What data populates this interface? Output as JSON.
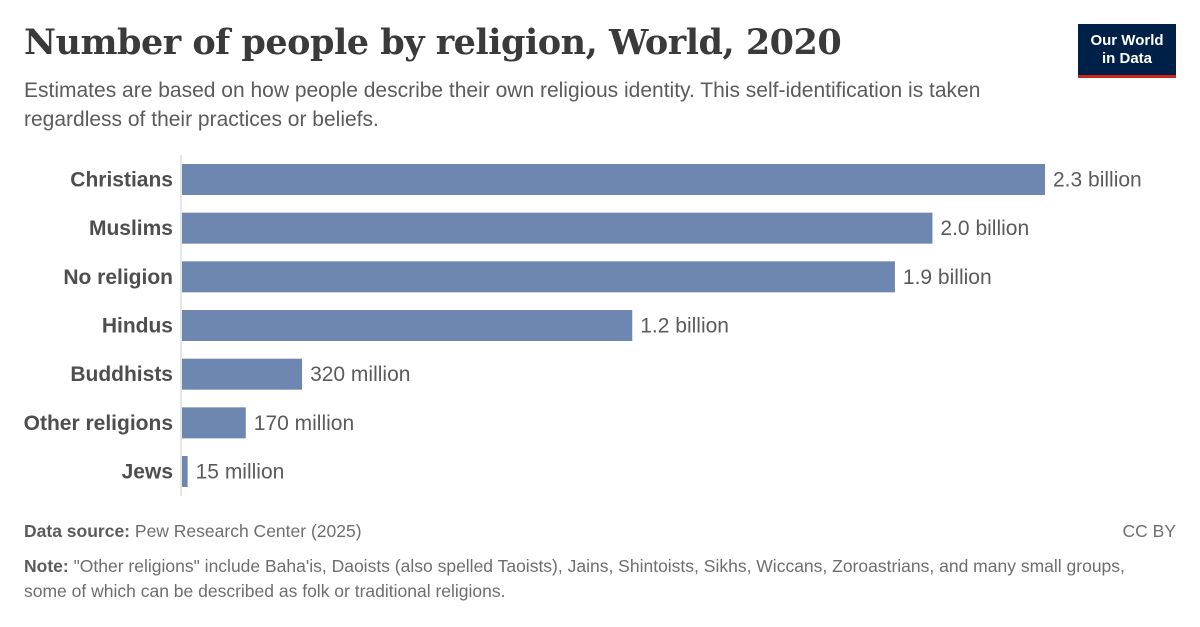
{
  "header": {
    "title": "Number of people by religion, World, 2020",
    "subtitle": "Estimates are based on how people describe their own religious identity. This self-identification is taken regardless of their practices or beliefs."
  },
  "logo": {
    "line1": "Our World",
    "line2": "in Data"
  },
  "footer": {
    "source_label": "Data source:",
    "source_text": "Pew Research Center (2025)",
    "license": "CC BY",
    "note_label": "Note:",
    "note_text": "\"Other religions\" include Baha'is, Daoists (also spelled Taoists), Jains, Shintoists, Sikhs, Wiccans, Zoroastrians, and many small groups, some of which can be described as folk or traditional religions."
  },
  "colors": {
    "bar": "#6d87b0",
    "axis": "#cccccc",
    "logo_bg": "#002147",
    "logo_accent": "#ce261e"
  },
  "chart_data": {
    "type": "bar",
    "orientation": "horizontal",
    "categories": [
      "Christians",
      "Muslims",
      "No religion",
      "Hindus",
      "Buddhists",
      "Other religions",
      "Jews"
    ],
    "values": [
      2300000000,
      2000000000,
      1900000000,
      1200000000,
      320000000,
      170000000,
      15000000
    ],
    "value_labels": [
      "2.3 billion",
      "2.0 billion",
      "1.9 billion",
      "1.2 billion",
      "320 million",
      "170 million",
      "15 million"
    ],
    "grid": false,
    "legend": "none"
  }
}
